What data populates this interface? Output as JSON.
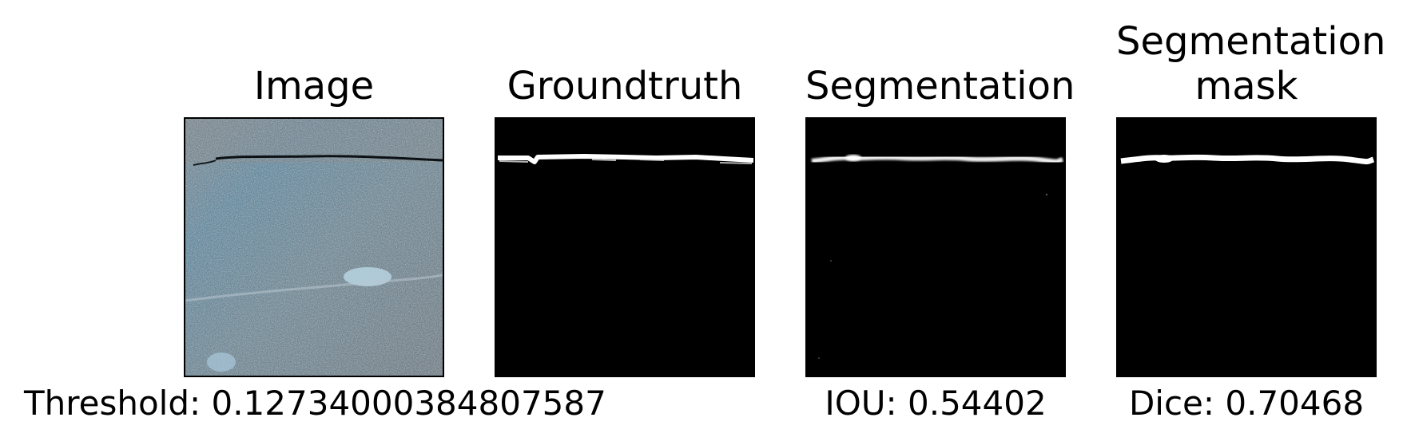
{
  "panels": [
    {
      "title": "Image"
    },
    {
      "title": "Groundtruth"
    },
    {
      "title": "Segmentation"
    },
    {
      "title_line1": "Segmentation",
      "title_line2": "mask"
    }
  ],
  "captions": {
    "threshold": "Threshold: 0.12734000384807587",
    "iou": "IOU: 0.54402",
    "dice": "Dice: 0.70468"
  },
  "colors": {
    "background": "#ffffff",
    "mask_background": "#000000",
    "mask_foreground": "#ffffff",
    "concrete_base": "#6f8794"
  }
}
